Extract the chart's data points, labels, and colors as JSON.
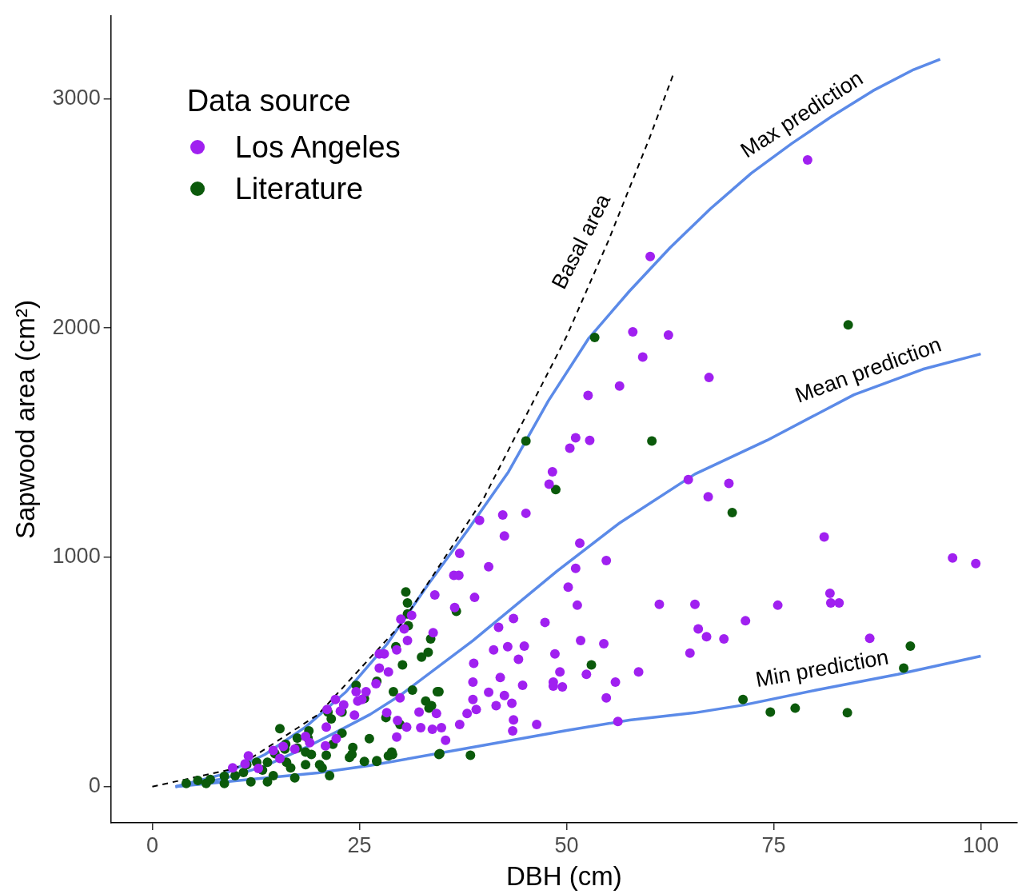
{
  "chart_data": {
    "type": "scatter",
    "xlabel": "DBH (cm)",
    "ylabel": "Sapwood area (cm²)",
    "legend_title": "Data source",
    "legend": "top left",
    "grid": false,
    "xlim": [
      -5,
      104.4
    ],
    "ylim": [
      -158,
      3360
    ],
    "xticks": [
      0,
      25,
      50,
      75,
      100
    ],
    "yticks": [
      0,
      1000,
      2000,
      3000
    ],
    "series": [
      {
        "type": "line",
        "name": "Basal area",
        "color": "#000000",
        "line_style": "dashed",
        "marker": "none",
        "x": [
          0,
          10,
          20,
          30,
          40,
          50,
          55,
          60,
          63
        ],
        "values": [
          0,
          79,
          314,
          707,
          1257,
          1963,
          2376,
          2827,
          3117
        ]
      },
      {
        "type": "line",
        "name": "Max prediction",
        "color": "#5b8ae8",
        "line_style": "solid",
        "marker": "none",
        "x": [
          2.8,
          8.7,
          13.6,
          18.5,
          23.4,
          28.3,
          33.2,
          38.1,
          43.0,
          47.8,
          52.7,
          57.6,
          62.5,
          67.4,
          72.3,
          77.2,
          82.1,
          87.0,
          91.9,
          95.1
        ],
        "values": [
          0,
          55,
          140,
          260,
          414,
          620,
          877,
          1120,
          1373,
          1682,
          1956,
          2161,
          2350,
          2521,
          2675,
          2805,
          2925,
          3035,
          3127,
          3172
        ]
      },
      {
        "type": "line",
        "name": "Mean prediction",
        "color": "#5b8ae8",
        "line_style": "solid",
        "marker": "none",
        "x": [
          2.8,
          8.7,
          13.6,
          18.5,
          23.4,
          26.3,
          30,
          38.7,
          48.8,
          56.3,
          65.5,
          74.2,
          84.7,
          93,
          100
        ],
        "values": [
          0,
          35,
          90,
          170,
          260,
          315,
          400,
          637,
          938,
          1147,
          1363,
          1510,
          1709,
          1820,
          1887
        ]
      },
      {
        "type": "line",
        "name": "Min prediction",
        "color": "#5b8ae8",
        "line_style": "solid",
        "marker": "none",
        "x": [
          2.8,
          10,
          20,
          26.3,
          40,
          50,
          57.6,
          65.5,
          71.4,
          80,
          90,
          100
        ],
        "values": [
          0,
          25,
          60,
          92,
          180,
          245,
          290,
          322,
          356,
          420,
          490,
          569
        ]
      },
      {
        "name": "Los Angeles",
        "color": "#a020f0",
        "marker": "circle",
        "x": [
          79.1,
          60.1,
          58.0,
          62.3,
          59.2,
          67.2,
          56.4,
          52.6,
          51.1,
          52.8,
          50.4,
          48.3,
          47.9,
          64.7,
          69.6,
          67.1,
          39.5,
          42.3,
          45.1,
          42.5,
          51.6,
          40.6,
          51.1,
          54.8,
          81.1,
          96.6,
          99.4,
          37.1,
          36.4,
          37.0,
          38.9,
          34.1,
          50.2,
          51.3,
          61.2,
          65.5,
          75.5,
          81.8,
          81.9,
          82.9,
          71.6,
          47.4,
          43.6,
          36.5,
          41.8,
          65.9,
          66.9,
          69.0,
          86.6,
          51.7,
          54.5,
          44.9,
          42.9,
          44.2,
          41.2,
          38.8,
          48.6,
          49.2,
          58.7,
          64.9,
          52.4,
          55.9,
          48.4,
          49.5,
          48.4,
          38.7,
          42.0,
          44.7,
          40.6,
          42.5,
          43.4,
          38.7,
          39.1,
          41.5,
          43.6,
          46.4,
          54.8,
          56.2,
          34.3,
          34.9,
          37.1,
          38.0,
          35.4,
          33.8,
          43.5,
          31.3,
          33.9,
          30.8,
          30.0,
          30.4,
          27.4,
          28.0,
          29.5,
          27.4,
          27.0,
          28.5,
          25.3,
          25.8,
          28.3,
          24.6,
          24.8,
          22.1,
          23.1,
          29.9,
          32.2,
          32.4,
          29.6,
          30.7,
          29.5,
          22.7,
          21.1,
          24.4,
          21.0,
          22.2,
          19.0,
          18.5,
          20.9,
          15.8,
          11.6,
          11.2,
          9.7,
          14.6,
          17.2,
          15.4,
          12.8
        ],
        "values": [
          2733,
          2312,
          1983,
          1969,
          1873,
          1784,
          1747,
          1706,
          1521,
          1510,
          1476,
          1373,
          1319,
          1339,
          1322,
          1264,
          1161,
          1185,
          1192,
          1093,
          1062,
          959,
          952,
          986,
          1089,
          997,
          973,
          1017,
          921,
          921,
          825,
          836,
          870,
          791,
          795,
          795,
          791,
          843,
          801,
          801,
          723,
          716,
          733,
          781,
          695,
          688,
          654,
          644,
          647,
          637,
          623,
          613,
          610,
          555,
          596,
          538,
          579,
          500,
          500,
          582,
          490,
          456,
          456,
          435,
          438,
          456,
          476,
          442,
          411,
          397,
          363,
          380,
          336,
          353,
          291,
          271,
          387,
          284,
          319,
          257,
          271,
          319,
          202,
          250,
          243,
          747,
          671,
          637,
          730,
          688,
          579,
          579,
          596,
          517,
          449,
          500,
          380,
          414,
          322,
          414,
          373,
          380,
          356,
          387,
          325,
          257,
          288,
          260,
          216,
          329,
          336,
          312,
          260,
          209,
          192,
          219,
          178,
          175,
          134,
          99,
          82,
          158,
          164,
          123,
          79
        ]
      },
      {
        "name": "Literature",
        "color": "#0b5a0b",
        "marker": "circle",
        "x": [
          53.4,
          45.1,
          48.7,
          60.3,
          70.0,
          84.0,
          53.0,
          38.4,
          71.3,
          74.6,
          77.6,
          83.9,
          90.7,
          91.5,
          36.7,
          34.6,
          33.7,
          34.6,
          30.6,
          30.8,
          33.6,
          33.3,
          32.5,
          30.2,
          29.4,
          31.4,
          29.9,
          33.0,
          28.2,
          28.9,
          28.5,
          23.8,
          27.1,
          30.8,
          30.9,
          27.1,
          24.6,
          29.1,
          25.6,
          34.4,
          33.4,
          21.2,
          21.6,
          22.9,
          18.9,
          17.5,
          18.8,
          22.9,
          21.8,
          24.2,
          24.1,
          21.0,
          26.2,
          29.0,
          27.1,
          25.6,
          34.7,
          16.1,
          14.8,
          16.2,
          18.5,
          20.5,
          21.4,
          13.9,
          12.6,
          13.3,
          17.2,
          13.9,
          11.9,
          11.0,
          10.0,
          8.7,
          7.0,
          5.5,
          4.1,
          6.5,
          8.7,
          15.4,
          16.0,
          18.5,
          17.5,
          19.2,
          20.2,
          16.7,
          14.6,
          11.4
        ],
        "values": [
          1959,
          1507,
          1295,
          1507,
          1195,
          2014,
          531,
          137,
          380,
          325,
          342,
          322,
          517,
          613,
          764,
          414,
          353,
          140,
          849,
          801,
          644,
          586,
          565,
          531,
          610,
          421,
          271,
          373,
          301,
          151,
          134,
          127,
          113,
          753,
          702,
          459,
          442,
          414,
          384,
          414,
          342,
          325,
          295,
          325,
          243,
          212,
          212,
          233,
          185,
          171,
          140,
          137,
          209,
          140,
          110,
          110,
          144,
          185,
          144,
          106,
          96,
          82,
          48,
          106,
          106,
          72,
          38,
          21,
          21,
          62,
          48,
          45,
          31,
          27,
          14,
          14,
          14,
          253,
          164,
          151,
          168,
          140,
          96,
          82,
          48,
          96
        ]
      }
    ]
  }
}
